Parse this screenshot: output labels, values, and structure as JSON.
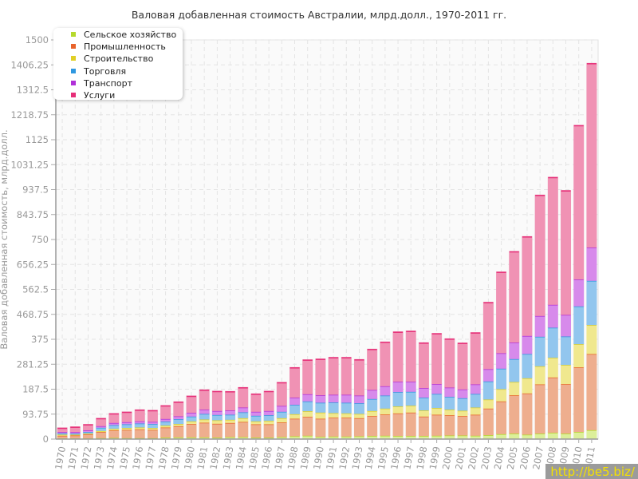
{
  "chart_data": {
    "type": "bar",
    "stacked": true,
    "title": "Валовая добавленная стоимость Австралии, млрд.долл., 1970-2011 гг.",
    "xlabel": "",
    "ylabel": "Валовая добавленная стоимость, млрд.долл.",
    "ylim": [
      0,
      1500
    ],
    "yticks": [
      "0",
      "93.75",
      "187.5",
      "281.25",
      "375",
      "468.75",
      "562.5",
      "656.25",
      "750",
      "843.75",
      "937.5",
      "1031.25",
      "1125",
      "1218.75",
      "1312.5",
      "1406.25",
      "1500"
    ],
    "grid": true,
    "legend_position": "top-left",
    "categories": [
      "1970",
      "1971",
      "1972",
      "1973",
      "1974",
      "1975",
      "1976",
      "1977",
      "1978",
      "1979",
      "1980",
      "1981",
      "1982",
      "1983",
      "1984",
      "1985",
      "1986",
      "1987",
      "1988",
      "1989",
      "1990",
      "1991",
      "1992",
      "1993",
      "1994",
      "1995",
      "1996",
      "1997",
      "1998",
      "1999",
      "2000",
      "2001",
      "2002",
      "2003",
      "2004",
      "2005",
      "2006",
      "2007",
      "2008",
      "2009",
      "2010",
      "2011"
    ],
    "series": [
      {
        "name": "Сельское хозяйство",
        "color": "#b5d92c",
        "fill": "#dcef9a",
        "values": [
          4,
          4,
          4,
          5,
          6,
          5,
          5,
          5,
          7,
          8,
          8,
          8,
          7,
          9,
          9,
          7,
          7,
          9,
          12,
          14,
          10,
          11,
          11,
          12,
          13,
          14,
          13,
          13,
          13,
          14,
          15,
          15,
          14,
          16,
          20,
          22,
          18,
          22,
          25,
          22,
          28,
          35
        ]
      },
      {
        "name": "Промышленность",
        "color": "#e8632b",
        "fill": "#eeae8e",
        "values": [
          10,
          11,
          16,
          23,
          28,
          31,
          33,
          31,
          38,
          42,
          50,
          55,
          52,
          53,
          57,
          50,
          50,
          55,
          66,
          71,
          68,
          71,
          71,
          68,
          75,
          80,
          85,
          88,
          73,
          79,
          76,
          73,
          79,
          100,
          123,
          144,
          155,
          185,
          208,
          186,
          243,
          286
        ]
      },
      {
        "name": "Строительство",
        "color": "#e0cf25",
        "fill": "#f0e88e",
        "values": [
          4,
          3,
          2,
          4,
          6,
          7,
          7,
          7,
          7,
          8,
          10,
          12,
          13,
          12,
          14,
          11,
          13,
          16,
          17,
          21,
          23,
          17,
          16,
          16,
          19,
          22,
          26,
          26,
          23,
          25,
          21,
          20,
          27,
          34,
          46,
          50,
          57,
          68,
          74,
          72,
          87,
          109
        ]
      },
      {
        "name": "Торговля",
        "color": "#2f98e0",
        "fill": "#92c6ee",
        "values": [
          5,
          4,
          6,
          12,
          14,
          14,
          15,
          15,
          15,
          18,
          18,
          21,
          20,
          19,
          22,
          21,
          21,
          24,
          35,
          37,
          37,
          40,
          40,
          40,
          45,
          49,
          54,
          52,
          48,
          53,
          48,
          47,
          51,
          68,
          77,
          86,
          91,
          111,
          113,
          107,
          142,
          166
        ]
      },
      {
        "name": "Транспорт",
        "color": "#b030d8",
        "fill": "#d78aeb",
        "values": [
          5,
          6,
          6,
          6,
          8,
          8,
          8,
          8,
          10,
          11,
          14,
          16,
          15,
          16,
          18,
          15,
          16,
          22,
          27,
          27,
          28,
          29,
          30,
          29,
          34,
          35,
          39,
          38,
          36,
          37,
          35,
          33,
          36,
          46,
          58,
          62,
          68,
          78,
          86,
          81,
          101,
          125
        ]
      },
      {
        "name": "Услуги",
        "color": "#e62e78",
        "fill": "#f092b4",
        "values": [
          14,
          18,
          21,
          28,
          34,
          37,
          42,
          42,
          49,
          53,
          62,
          73,
          73,
          70,
          74,
          66,
          73,
          87,
          112,
          128,
          135,
          139,
          139,
          134,
          152,
          165,
          186,
          189,
          169,
          189,
          182,
          173,
          193,
          250,
          304,
          341,
          372,
          453,
          478,
          466,
          578,
          691
        ]
      }
    ]
  },
  "watermark": "http://be5.biz/"
}
